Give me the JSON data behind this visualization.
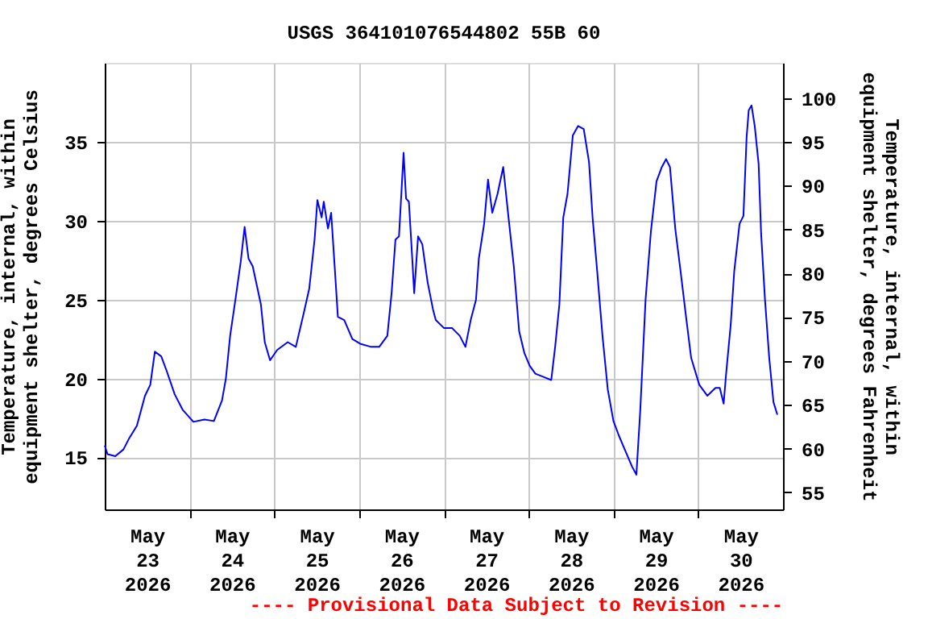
{
  "chart_data": {
    "type": "line",
    "title": "USGS 364101076544802 55B 60",
    "ylabel": "Temperature, internal, within equipment shelter, degrees Celsius",
    "y2label": "Temperature, internal, within equipment shelter, degrees Fahrenheit",
    "annotations": [
      "---- Provisional Data Subject to Revision ----"
    ],
    "x": [
      "2026-05-23T00:00",
      "2026-05-23T00:48",
      "2026-05-23T03:00",
      "2026-05-23T05:18",
      "2026-05-23T06:54",
      "2026-05-23T09:06",
      "2026-05-23T11:24",
      "2026-05-23T12:54",
      "2026-05-23T14:12",
      "2026-05-23T16:00",
      "2026-05-23T17:30",
      "2026-05-23T19:48",
      "2026-05-23T22:06",
      "2026-05-24T01:06",
      "2026-05-24T04:12",
      "2026-05-24T06:54",
      "2026-05-24T09:12",
      "2026-05-24T10:18",
      "2026-05-24T11:30",
      "2026-05-24T13:00",
      "2026-05-24T14:30",
      "2026-05-24T15:36",
      "2026-05-24T16:42",
      "2026-05-24T17:54",
      "2026-05-24T20:12",
      "2026-05-24T21:18",
      "2026-05-24T22:48",
      "2026-05-25T00:48",
      "2026-05-25T03:48",
      "2026-05-25T06:06",
      "2026-05-25T08:24",
      "2026-05-25T09:54",
      "2026-05-25T11:24",
      "2026-05-25T12:12",
      "2026-05-25T13:24",
      "2026-05-25T14:00",
      "2026-05-25T15:12",
      "2026-05-25T16:06",
      "2026-05-25T17:00",
      "2026-05-25T18:00",
      "2026-05-25T19:48",
      "2026-05-25T22:06",
      "2026-05-26T00:18",
      "2026-05-26T03:24",
      "2026-05-26T05:42",
      "2026-05-26T08:00",
      "2026-05-26T09:12",
      "2026-05-26T10:18",
      "2026-05-26T11:18",
      "2026-05-26T12:36",
      "2026-05-26T13:18",
      "2026-05-26T14:06",
      "2026-05-26T15:06",
      "2026-05-26T15:36",
      "2026-05-26T16:42",
      "2026-05-26T17:54",
      "2026-05-26T19:24",
      "2026-05-26T20:54",
      "2026-05-26T21:42",
      "2026-05-27T00:00",
      "2026-05-27T02:18",
      "2026-05-27T04:30",
      "2026-05-27T06:06",
      "2026-05-27T07:36",
      "2026-05-27T09:06",
      "2026-05-27T09:54",
      "2026-05-27T11:24",
      "2026-05-27T12:30",
      "2026-05-27T13:42",
      "2026-05-27T15:12",
      "2026-05-27T16:48",
      "2026-05-27T18:18",
      "2026-05-27T19:48",
      "2026-05-27T21:18",
      "2026-05-27T22:48",
      "2026-05-28T00:18",
      "2026-05-28T01:54",
      "2026-05-28T04:12",
      "2026-05-28T06:24",
      "2026-05-28T07:30",
      "2026-05-28T08:42",
      "2026-05-28T09:48",
      "2026-05-28T11:00",
      "2026-05-28T12:30",
      "2026-05-28T14:00",
      "2026-05-28T15:36",
      "2026-05-28T17:06",
      "2026-05-28T18:06",
      "2026-05-28T19:24",
      "2026-05-28T20:54",
      "2026-05-28T22:24",
      "2026-05-29T00:00",
      "2026-05-29T01:30",
      "2026-05-29T03:00",
      "2026-05-29T05:18",
      "2026-05-29T06:30",
      "2026-05-29T07:36",
      "2026-05-29T09:06",
      "2026-05-29T10:36",
      "2026-05-29T12:12",
      "2026-05-29T13:42",
      "2026-05-29T14:54",
      "2026-05-29T16:00",
      "2026-05-29T17:30",
      "2026-05-29T19:00",
      "2026-05-29T20:30",
      "2026-05-29T22:00",
      "2026-05-30T00:18",
      "2026-05-30T02:36",
      "2026-05-30T04:54",
      "2026-05-30T06:06",
      "2026-05-30T07:12",
      "2026-05-30T07:54",
      "2026-05-30T09:12",
      "2026-05-30T10:12",
      "2026-05-30T11:42",
      "2026-05-30T12:48",
      "2026-05-30T13:42",
      "2026-05-30T14:18",
      "2026-05-30T15:06",
      "2026-05-30T16:00",
      "2026-05-30T17:06",
      "2026-05-30T17:48",
      "2026-05-30T18:54",
      "2026-05-30T20:06",
      "2026-05-30T21:18",
      "2026-05-30T22:24"
    ],
    "series": [
      {
        "color": "#0000ff",
        "values": [
          15.75,
          15.2,
          15.07,
          15.5,
          16.2,
          17.0,
          18.9,
          19.6,
          21.7,
          21.4,
          20.5,
          19.0,
          18.0,
          17.25,
          17.4,
          17.3,
          18.6,
          20.0,
          22.7,
          25.0,
          27.4,
          29.6,
          27.6,
          27.1,
          24.7,
          22.3,
          21.15,
          21.8,
          22.3,
          22.0,
          24.2,
          25.7,
          28.8,
          31.3,
          30.2,
          31.2,
          29.5,
          30.5,
          27.4,
          23.9,
          23.7,
          22.5,
          22.2,
          22.0,
          22.0,
          22.7,
          25.4,
          28.8,
          29.0,
          34.3,
          31.4,
          31.2,
          27.4,
          25.4,
          29.0,
          28.5,
          26.1,
          24.4,
          23.7,
          23.2,
          23.2,
          22.7,
          22.0,
          23.7,
          25.0,
          27.6,
          29.8,
          32.6,
          30.5,
          31.7,
          33.4,
          30.2,
          27.1,
          23.0,
          21.6,
          20.8,
          20.3,
          20.1,
          19.9,
          22.0,
          24.7,
          30.2,
          31.7,
          35.4,
          36.0,
          35.8,
          33.7,
          30.2,
          26.8,
          22.7,
          19.3,
          17.3,
          16.4,
          15.6,
          14.4,
          13.9,
          18.0,
          25.0,
          29.3,
          32.5,
          33.4,
          33.9,
          33.4,
          29.5,
          26.8,
          24.0,
          21.3,
          19.6,
          18.9,
          19.4,
          19.4,
          18.4,
          20.3,
          23.4,
          26.8,
          29.8,
          30.3,
          35.3,
          37.0,
          37.3,
          36.0,
          33.6,
          29.2,
          25.0,
          21.3,
          18.5,
          17.7
        ]
      }
    ],
    "xlim": [
      "2026-05-23T00:00",
      "2026-05-31T00:00"
    ],
    "xticks": [
      {
        "value": "2026-05-23T12:00",
        "label": "May 23 2026"
      },
      {
        "value": "2026-05-24T00:00",
        "label": null
      },
      {
        "value": "2026-05-24T12:00",
        "label": "May 24 2026"
      },
      {
        "value": "2026-05-25T00:00",
        "label": null
      },
      {
        "value": "2026-05-25T12:00",
        "label": "May 25 2026"
      },
      {
        "value": "2026-05-26T00:00",
        "label": null
      },
      {
        "value": "2026-05-26T12:00",
        "label": "May 26 2026"
      },
      {
        "value": "2026-05-27T00:00",
        "label": null
      },
      {
        "value": "2026-05-27T12:00",
        "label": "May 27 2026"
      },
      {
        "value": "2026-05-28T00:00",
        "label": null
      },
      {
        "value": "2026-05-28T12:00",
        "label": "May 28 2026"
      },
      {
        "value": "2026-05-29T00:00",
        "label": null
      },
      {
        "value": "2026-05-29T12:00",
        "label": "May 29 2026"
      },
      {
        "value": "2026-05-30T00:00",
        "label": null
      },
      {
        "value": "2026-05-30T12:00",
        "label": "May 30 2026"
      }
    ],
    "ylim": [
      11.7,
      40.0
    ],
    "yticks": [
      15,
      20,
      25,
      30,
      35
    ],
    "y2lim": [
      53.06,
      104.0
    ],
    "y2ticks": [
      55,
      60,
      65,
      70,
      75,
      80,
      85,
      90,
      95,
      100
    ],
    "grid": true,
    "legend": false,
    "marker": "none",
    "line_style": "solid"
  }
}
